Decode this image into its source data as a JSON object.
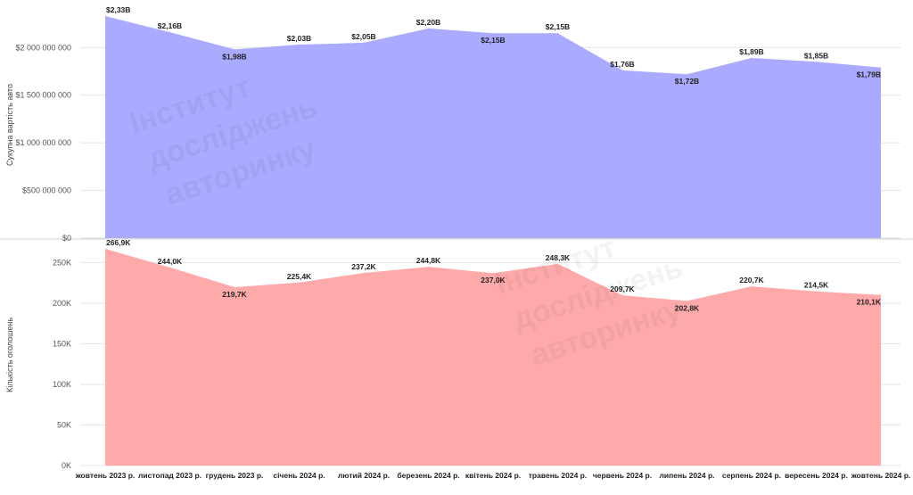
{
  "chart_data": [
    {
      "type": "area",
      "categories": [
        "жовтень 2023 р.",
        "листопад 2023 р.",
        "грудень 2023 р.",
        "січень 2024 р.",
        "лютий 2024 р.",
        "березень 2024 р.",
        "квітень 2024 р.",
        "травень 2024 р.",
        "червень 2024 р.",
        "липень 2024 р.",
        "серпень 2024 р.",
        "вересень 2024 р.",
        "жовтень 2024 р."
      ],
      "values": [
        2330000000,
        2160000000,
        1980000000,
        2030000000,
        2050000000,
        2200000000,
        2150000000,
        2150000000,
        1760000000,
        1720000000,
        1890000000,
        1850000000,
        1790000000
      ],
      "data_labels": [
        "$2,33B",
        "$2,16B",
        "$1,98B",
        "$2,03B",
        "$2,05B",
        "$2,20B",
        "$2,15B",
        "$2,15B",
        "$1,76B",
        "$1,72B",
        "$1,89B",
        "$1,85B",
        "$1,79B"
      ],
      "ylabel": "Сукупна вартість авто",
      "yticks": [
        "$0",
        "$500 000 000",
        "$1 000 000 000",
        "$1 500 000 000",
        "$2 000 000 000"
      ],
      "ytick_values": [
        0,
        500000000,
        1000000000,
        1500000000,
        2000000000
      ],
      "ylim": [
        0,
        2330000000
      ],
      "color": "#aaaaff",
      "grid": true
    },
    {
      "type": "area",
      "categories": [
        "жовтень 2023 р.",
        "листопад 2023 р.",
        "грудень 2023 р.",
        "січень 2024 р.",
        "лютий 2024 р.",
        "березень 2024 р.",
        "квітень 2024 р.",
        "травень 2024 р.",
        "червень 2024 р.",
        "липень 2024 р.",
        "серпень 2024 р.",
        "вересень 2024 р.",
        "жовтень 2024 р."
      ],
      "values": [
        266900,
        244000,
        219700,
        225400,
        237200,
        244800,
        237000,
        248300,
        209700,
        202800,
        220700,
        214500,
        210100
      ],
      "data_labels": [
        "266,9K",
        "244,0K",
        "219,7K",
        "225,4K",
        "237,2K",
        "244,8K",
        "237,0K",
        "248,3K",
        "209,7K",
        "202,8K",
        "220,7K",
        "214,5K",
        "210,1K"
      ],
      "ylabel": "Кількість оголошень",
      "yticks": [
        "0K",
        "50K",
        "100K",
        "150K",
        "200K",
        "250K"
      ],
      "ytick_values": [
        0,
        50000,
        100000,
        150000,
        200000,
        250000
      ],
      "ylim": [
        0,
        266900
      ],
      "color": "#ffaaaa",
      "grid": true
    }
  ],
  "watermark": {
    "lines": [
      "Інститут",
      "досліджень",
      "авторинку"
    ]
  }
}
